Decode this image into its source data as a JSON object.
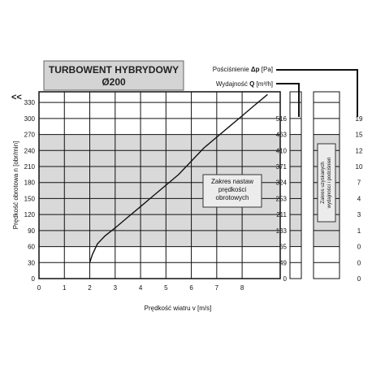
{
  "chart_data": {
    "type": "line",
    "title": "TURBOWENT HYBRYDOWY",
    "subtitle": "Ø200",
    "xlabel": "Prędkość wiatru v [m/s]",
    "ylabel": "Prędkość obrotowa n [obr/min]",
    "xlim": [
      0,
      9.5
    ],
    "ylim": [
      0,
      350
    ],
    "x_ticks": [
      "0",
      "1",
      "2",
      "3",
      "4",
      "5",
      "6",
      "7",
      "8"
    ],
    "y_ticks": [
      "0",
      "30",
      "60",
      "90",
      "120",
      "150",
      "180",
      "210",
      "240",
      "270",
      "300",
      "330"
    ],
    "x": [
      2.0,
      2.1,
      2.3,
      2.6,
      3.0,
      3.5,
      4.0,
      4.5,
      5.0,
      5.5,
      6.0,
      6.5,
      7.0,
      7.5,
      8.0,
      8.5,
      9.0
    ],
    "y": [
      30,
      45,
      65,
      80,
      95,
      115,
      135,
      155,
      175,
      195,
      220,
      245,
      265,
      285,
      305,
      325,
      345
    ],
    "shaded_band": [
      60,
      270
    ],
    "right_axis_pressure": {
      "label_prefix": "Pościśnienie ",
      "label_symbol": "Δp",
      "label_unit": " [Pa]",
      "ticks": [
        "0",
        "49",
        "65",
        "133",
        "211",
        "253",
        "324",
        "371",
        "410",
        "463",
        "516"
      ]
    },
    "right_axis_flow": {
      "label_prefix": "Wydajność ",
      "label_symbol": "Q",
      "label_unit": " [m³/h]",
      "ticks": [
        "0",
        "0",
        "0",
        "1",
        "3",
        "4",
        "7",
        "10",
        "12",
        "15",
        "19"
      ]
    },
    "annotations": {
      "range_box": [
        "Zakres nastaw",
        "prędkości",
        "obrotowych"
      ],
      "flow_box": [
        "Zakres uzyskanych",
        "wydajności i podciśnień"
      ]
    }
  },
  "ui": {
    "collapse_glyph": "<<"
  }
}
